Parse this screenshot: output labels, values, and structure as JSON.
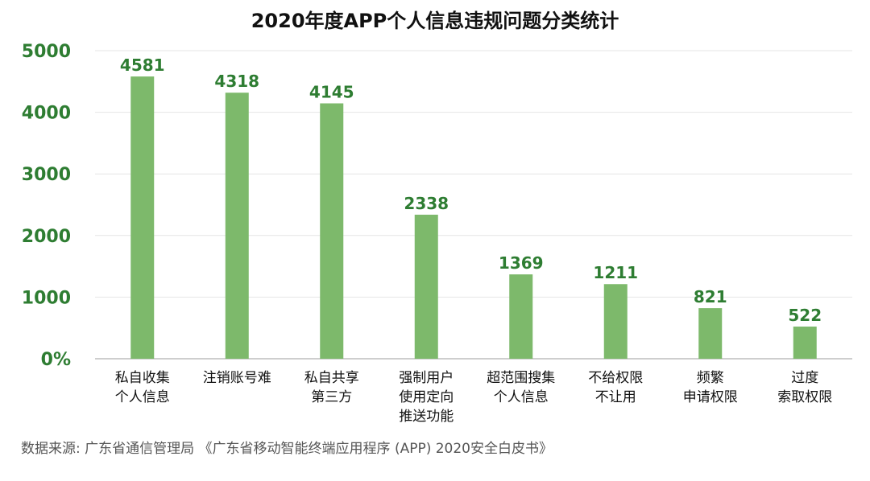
{
  "chart_data": {
    "type": "bar",
    "title": "2020年度APP个人信息违规问题分类统计",
    "categories": [
      [
        "私自收集",
        "个人信息"
      ],
      [
        "注销账号难"
      ],
      [
        "私自共享",
        "第三方"
      ],
      [
        "强制用户",
        "使用定向",
        "推送功能"
      ],
      [
        "超范围搜集",
        "个人信息"
      ],
      [
        "不给权限",
        "不让用"
      ],
      [
        "频繁",
        "申请权限"
      ],
      [
        "过度",
        "索取权限"
      ]
    ],
    "values": [
      4581,
      4318,
      4145,
      2338,
      1369,
      1211,
      821,
      522
    ],
    "ylim": [
      0,
      5000
    ],
    "yticks": [
      0,
      1000,
      2000,
      3000,
      4000,
      5000
    ],
    "ytick_labels": [
      "0%",
      "1000",
      "2000",
      "3000",
      "4000",
      "5000"
    ],
    "grid": true,
    "bar_color": "#7db96b",
    "label_color": "#2e7d32"
  },
  "source": "数据来源: 广东省通信管理局 《广东省移动智能终端应用程序 (APP) 2020安全白皮书》"
}
